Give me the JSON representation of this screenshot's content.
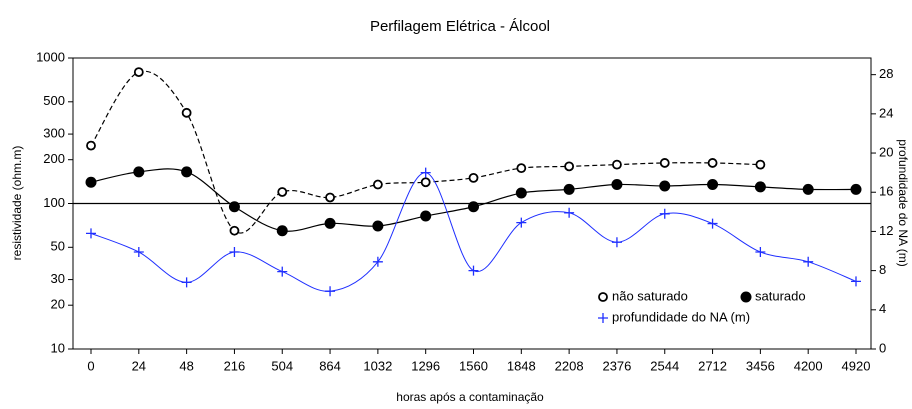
{
  "chart_data": {
    "type": "line",
    "title": "Perfilagem Elétrica - Álcool",
    "x_label": "horas após a contaminação",
    "y_label": "resistividade (ohm.m)",
    "y2_label": "profundidade do NA (m)",
    "categories": [
      "0",
      "24",
      "48",
      "216",
      "504",
      "864",
      "1032",
      "1296",
      "1560",
      "1848",
      "2208",
      "2376",
      "2544",
      "2712",
      "3456",
      "4200",
      "4920"
    ],
    "ylim": [
      10,
      1000
    ],
    "y_log": true,
    "yticks": [
      10,
      20,
      30,
      50,
      100,
      200,
      300,
      500,
      1000
    ],
    "y2lim": [
      0,
      29.7
    ],
    "y2ticks": [
      0,
      4,
      8,
      12,
      16,
      20,
      24,
      28
    ],
    "hline": 100,
    "legend": "lower right",
    "series": [
      {
        "name": "não saturado",
        "color": "#000000",
        "marker": "open-circle",
        "dashed": true,
        "values": [
          250,
          800,
          420,
          65,
          120,
          110,
          135,
          140,
          150,
          175,
          180,
          185,
          190,
          190,
          185,
          null,
          null
        ]
      },
      {
        "name": "saturado",
        "color": "#000000",
        "marker": "filled-circle",
        "dashed": false,
        "values": [
          140,
          165,
          165,
          95,
          65,
          73,
          70,
          82,
          95,
          118,
          125,
          135,
          132,
          135,
          130,
          125,
          125
        ]
      },
      {
        "name": "profundidade do NA (m)",
        "color": "#1f2fff",
        "marker": "plus",
        "dashed": false,
        "axis": "y2",
        "values": [
          11.8,
          9.9,
          6.8,
          9.9,
          7.9,
          5.9,
          8.9,
          18.0,
          8.0,
          12.9,
          13.9,
          10.9,
          13.8,
          12.8,
          9.9,
          8.9,
          6.9
        ]
      }
    ]
  }
}
